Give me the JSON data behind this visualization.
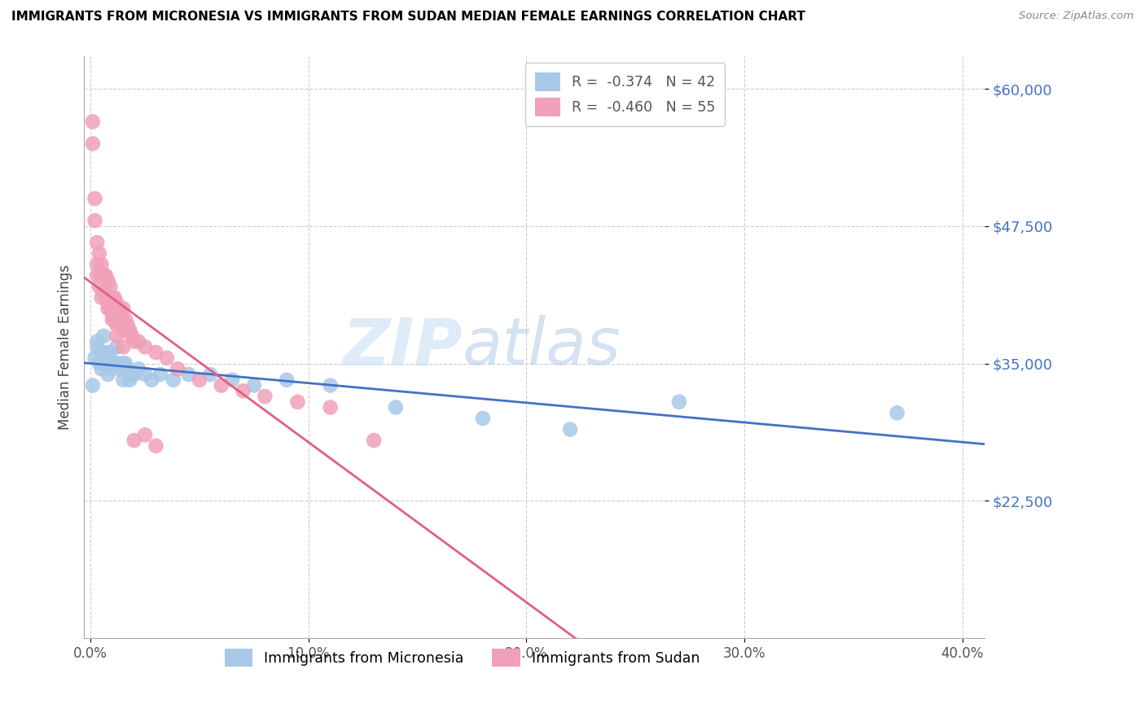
{
  "title": "IMMIGRANTS FROM MICRONESIA VS IMMIGRANTS FROM SUDAN MEDIAN FEMALE EARNINGS CORRELATION CHART",
  "source": "Source: ZipAtlas.com",
  "ylabel": "Median Female Earnings",
  "watermark_zip": "ZIP",
  "watermark_atlas": "atlas",
  "legend_blue_R": "-0.374",
  "legend_blue_N": "42",
  "legend_pink_R": "-0.460",
  "legend_pink_N": "55",
  "micronesia_color": "#a8c8e8",
  "sudan_color": "#f0a0b8",
  "blue_line_color": "#4472c4",
  "pink_line_color": "#e06080",
  "ymin": 10000,
  "ymax": 63000,
  "xmin": -0.003,
  "xmax": 0.41,
  "ytick_positions": [
    22500,
    35000,
    47500,
    60000
  ],
  "ytick_labels": [
    "$22,500",
    "$35,000",
    "$47,500",
    "$60,000"
  ],
  "xtick_positions": [
    0.0,
    0.1,
    0.2,
    0.3,
    0.4
  ],
  "xtick_labels": [
    "0.0%",
    "10.0%",
    "20.0%",
    "30.0%",
    "40.0%"
  ],
  "micronesia_x": [
    0.001,
    0.002,
    0.003,
    0.003,
    0.004,
    0.005,
    0.005,
    0.006,
    0.007,
    0.007,
    0.008,
    0.008,
    0.009,
    0.01,
    0.01,
    0.011,
    0.012,
    0.013,
    0.014,
    0.015,
    0.015,
    0.016,
    0.017,
    0.018,
    0.019,
    0.02,
    0.022,
    0.025,
    0.028,
    0.032,
    0.038,
    0.045,
    0.055,
    0.065,
    0.075,
    0.09,
    0.11,
    0.14,
    0.18,
    0.22,
    0.27,
    0.37
  ],
  "micronesia_y": [
    33000,
    35500,
    36500,
    37000,
    35000,
    36000,
    34500,
    37500,
    36000,
    35000,
    35500,
    34000,
    36000,
    35000,
    34500,
    35000,
    36500,
    35000,
    34500,
    35000,
    33500,
    35000,
    34500,
    33500,
    34000,
    34000,
    34500,
    34000,
    33500,
    34000,
    33500,
    34000,
    34000,
    33500,
    33000,
    33500,
    33000,
    31000,
    30000,
    29000,
    31500,
    30500
  ],
  "sudan_x": [
    0.001,
    0.001,
    0.002,
    0.002,
    0.003,
    0.003,
    0.004,
    0.004,
    0.005,
    0.005,
    0.005,
    0.006,
    0.006,
    0.007,
    0.007,
    0.008,
    0.008,
    0.009,
    0.009,
    0.01,
    0.01,
    0.011,
    0.011,
    0.012,
    0.012,
    0.013,
    0.014,
    0.015,
    0.015,
    0.016,
    0.017,
    0.018,
    0.019,
    0.02,
    0.022,
    0.025,
    0.03,
    0.035,
    0.04,
    0.05,
    0.06,
    0.07,
    0.08,
    0.095,
    0.11,
    0.13,
    0.003,
    0.005,
    0.008,
    0.01,
    0.012,
    0.015,
    0.02,
    0.025,
    0.03
  ],
  "sudan_y": [
    55000,
    57000,
    50000,
    48000,
    46000,
    43000,
    45000,
    42000,
    44000,
    43000,
    41000,
    43000,
    41500,
    43000,
    41000,
    42500,
    40500,
    42000,
    40000,
    41000,
    39500,
    41000,
    39000,
    40500,
    38500,
    40000,
    39500,
    40000,
    38000,
    39000,
    38500,
    38000,
    37500,
    37000,
    37000,
    36500,
    36000,
    35500,
    34500,
    33500,
    33000,
    32500,
    32000,
    31500,
    31000,
    28000,
    44000,
    43000,
    40000,
    39000,
    37500,
    36500,
    28000,
    28500,
    27500
  ]
}
